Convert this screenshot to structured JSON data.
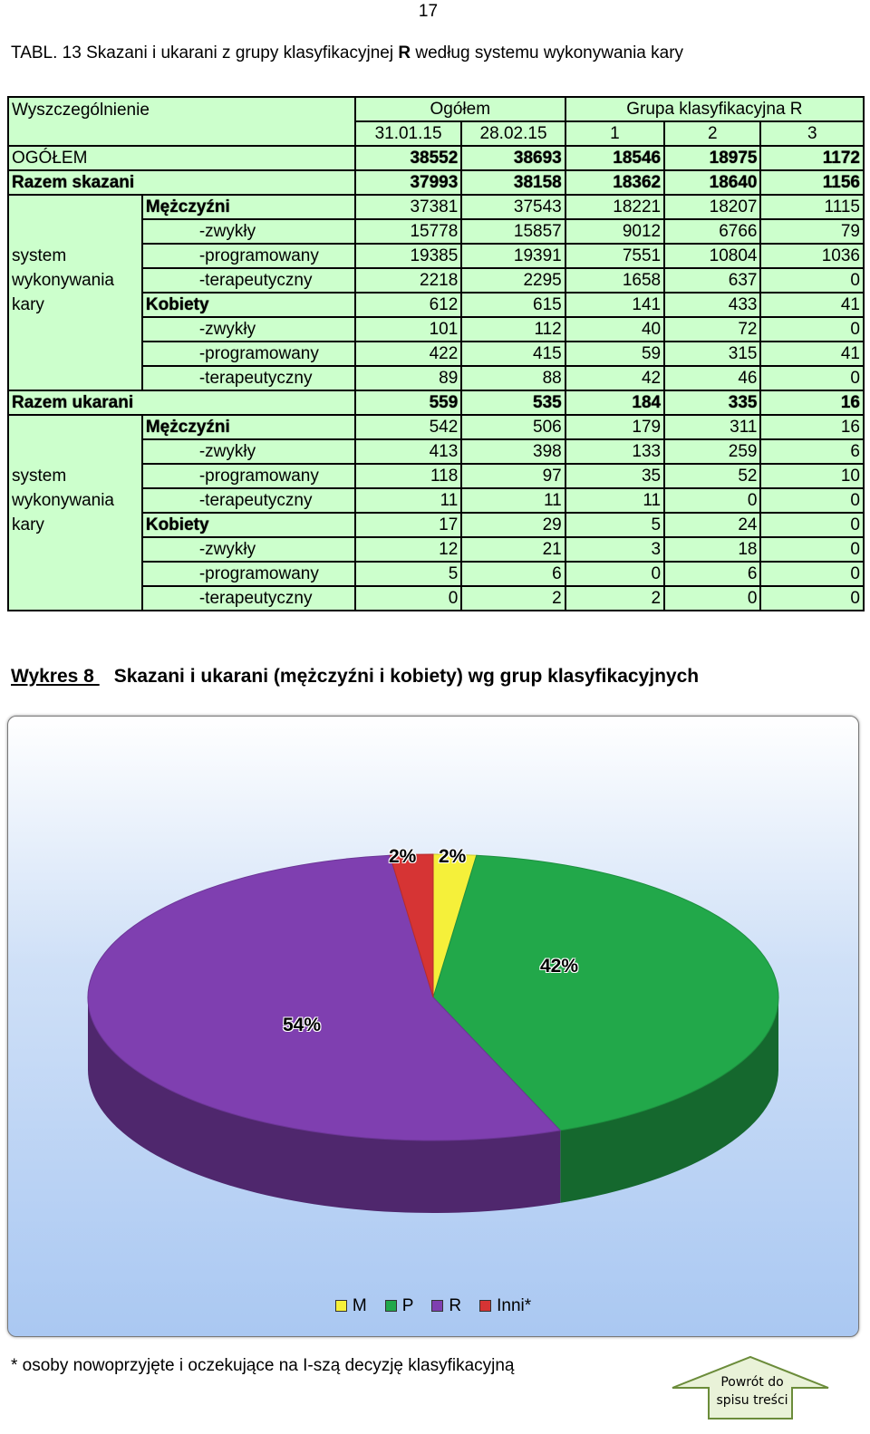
{
  "page_number": "17",
  "table_title": {
    "prefix": "TABL. 13  Skazani i ukarani z grupy klasyfikacyjnej ",
    "bold": "R",
    "suffix": " według systemu wykonywania kary"
  },
  "table": {
    "h_desc": "Wyszczególnienie",
    "h_total": "Ogółem",
    "h_group": "Grupa klasyfikacyjna R",
    "h_dates": [
      "31.01.15",
      "28.02.15"
    ],
    "h_groups": [
      "1",
      "2",
      "3"
    ],
    "ogolem": {
      "label": "OGÓŁEM",
      "values": [
        "38552",
        "38693",
        "18546",
        "18975",
        "1172"
      ]
    },
    "skazani": {
      "label": "Razem skazani",
      "values": [
        "37993",
        "38158",
        "18362",
        "18640",
        "1156"
      ],
      "system_label": [
        "system",
        "wykonywania",
        "kary"
      ],
      "men": {
        "label": "Mężczyźni",
        "values": [
          "37381",
          "37543",
          "18221",
          "18207",
          "1115"
        ],
        "rows": [
          {
            "label": "-zwykły",
            "values": [
              "15778",
              "15857",
              "9012",
              "6766",
              "79"
            ]
          },
          {
            "label": "-programowany",
            "values": [
              "19385",
              "19391",
              "7551",
              "10804",
              "1036"
            ]
          },
          {
            "label": "-terapeutyczny",
            "values": [
              "2218",
              "2295",
              "1658",
              "637",
              "0"
            ]
          }
        ]
      },
      "women": {
        "label": "Kobiety",
        "values": [
          "612",
          "615",
          "141",
          "433",
          "41"
        ],
        "rows": [
          {
            "label": "-zwykły",
            "values": [
              "101",
              "112",
              "40",
              "72",
              "0"
            ]
          },
          {
            "label": "-programowany",
            "values": [
              "422",
              "415",
              "59",
              "315",
              "41"
            ]
          },
          {
            "label": "-terapeutyczny",
            "values": [
              "89",
              "88",
              "42",
              "46",
              "0"
            ]
          }
        ]
      }
    },
    "ukarani": {
      "label": "Razem ukarani",
      "values": [
        "559",
        "535",
        "184",
        "335",
        "16"
      ],
      "system_label": [
        "system",
        "wykonywania",
        "kary"
      ],
      "men": {
        "label": "Mężczyźni",
        "values": [
          "542",
          "506",
          "179",
          "311",
          "16"
        ],
        "rows": [
          {
            "label": "-zwykły",
            "values": [
              "413",
              "398",
              "133",
              "259",
              "6"
            ]
          },
          {
            "label": "-programowany",
            "values": [
              "118",
              "97",
              "35",
              "52",
              "10"
            ]
          },
          {
            "label": "-terapeutyczny",
            "values": [
              "11",
              "11",
              "11",
              "0",
              "0"
            ]
          }
        ]
      },
      "women": {
        "label": "Kobiety",
        "values": [
          "17",
          "29",
          "5",
          "24",
          "0"
        ],
        "rows": [
          {
            "label": "-zwykły",
            "values": [
              "12",
              "21",
              "3",
              "18",
              "0"
            ]
          },
          {
            "label": "-programowany",
            "values": [
              "5",
              "6",
              "0",
              "6",
              "0"
            ]
          },
          {
            "label": "-terapeutyczny",
            "values": [
              "0",
              "2",
              "2",
              "0",
              "0"
            ]
          }
        ]
      }
    }
  },
  "chart_caption": {
    "label": "Wykres  8 ",
    "text": "Skazani i ukarani (mężczyźni i kobiety) wg grup klasyfikacyjnych"
  },
  "chart_data": {
    "type": "pie",
    "title": "",
    "slices": [
      {
        "name": "M",
        "value": 2,
        "label": "2%",
        "color": "#f5f03a"
      },
      {
        "name": "P",
        "value": 42,
        "label": "42%",
        "color": "#22a84a"
      },
      {
        "name": "R",
        "value": 54,
        "label": "54%",
        "color": "#7f3fb0"
      },
      {
        "name": "Inni*",
        "value": 2,
        "label": "2%",
        "color": "#d63434"
      }
    ],
    "legend_position": "bottom"
  },
  "footnote": "* osoby nowoprzyjęte i oczekujące na I-szą decyzję klasyfikacyjną",
  "nav_button": {
    "line1": "Powrót do",
    "line2": "spisu treści"
  }
}
